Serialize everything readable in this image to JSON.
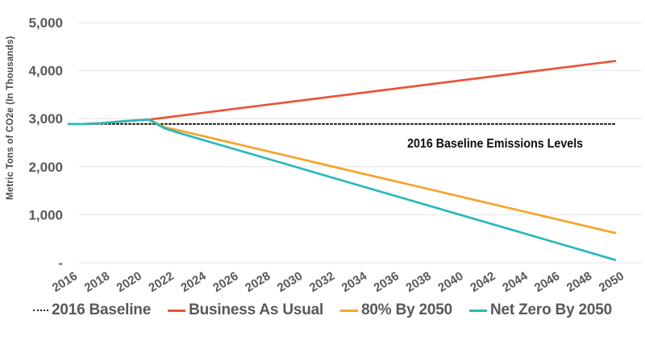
{
  "chart_data": {
    "type": "line",
    "title": "",
    "xlabel": "",
    "ylabel": "Metric Tons of CO2e (In Thousands)",
    "x_range": [
      2016,
      2050
    ],
    "y_range": [
      0,
      5000
    ],
    "grid": "horizontal",
    "legend_position": "bottom",
    "x_ticks": [
      "2016",
      "2018",
      "2020",
      "2022",
      "2024",
      "2026",
      "2028",
      "2030",
      "2032",
      "2034",
      "2036",
      "2038",
      "2040",
      "2042",
      "2044",
      "2046",
      "2048",
      "2050"
    ],
    "y_ticks": [
      {
        "label": "5,000",
        "value": 5000
      },
      {
        "label": "4,000",
        "value": 4000
      },
      {
        "label": "3,000",
        "value": 3000
      },
      {
        "label": "2,000",
        "value": 2000
      },
      {
        "label": "1,000",
        "value": 1000
      },
      {
        "label": "-",
        "value": 0
      }
    ],
    "annotation": {
      "text": "2016 Baseline Emissions Levels",
      "x": 2048,
      "y": 2400
    },
    "colors": {
      "baseline": "#1a1a1a",
      "business_as_usual": "#e8543c",
      "eighty_by_2050": "#f5a42a",
      "net_zero_by_2050": "#29b8bc",
      "axis_text": "#595959",
      "gridline": "#e4e4e4"
    },
    "series": [
      {
        "name": "2016 Baseline",
        "color": "#1a1a1a",
        "style": "dotted",
        "points": [
          [
            2016,
            2890
          ],
          [
            2050,
            2890
          ]
        ]
      },
      {
        "name": "Business As Usual",
        "color": "#e8543c",
        "style": "solid",
        "points": [
          [
            2016,
            2890
          ],
          [
            2017,
            2890
          ],
          [
            2018,
            2905
          ],
          [
            2019,
            2935
          ],
          [
            2020,
            2960
          ],
          [
            2021,
            2980
          ],
          [
            2050,
            4200
          ]
        ]
      },
      {
        "name": "80% By 2050",
        "color": "#f5a42a",
        "style": "solid",
        "points": [
          [
            2016,
            2890
          ],
          [
            2017,
            2890
          ],
          [
            2018,
            2905
          ],
          [
            2019,
            2935
          ],
          [
            2020,
            2960
          ],
          [
            2021,
            2980
          ],
          [
            2022,
            2820
          ],
          [
            2023,
            2745
          ],
          [
            2050,
            620
          ]
        ]
      },
      {
        "name": "Net Zero By 2050",
        "color": "#29b8bc",
        "style": "solid",
        "points": [
          [
            2016,
            2890
          ],
          [
            2017,
            2890
          ],
          [
            2018,
            2905
          ],
          [
            2019,
            2935
          ],
          [
            2020,
            2960
          ],
          [
            2021,
            2980
          ],
          [
            2022,
            2795
          ],
          [
            2023,
            2690
          ],
          [
            2050,
            60
          ]
        ]
      }
    ]
  }
}
